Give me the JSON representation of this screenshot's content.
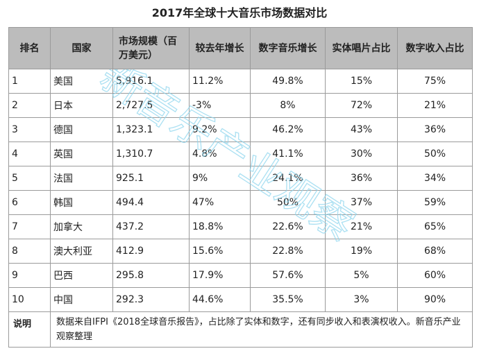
{
  "title": "2017年全球十大音乐市场数据对比",
  "headers": {
    "rank": "排名",
    "country": "国家",
    "market": "市场规模（百万美元）",
    "yoy": "较去年增长",
    "digital_growth": "数字音乐增长",
    "physical_share": "实体唱片占比",
    "digital_share": "数字收入占比"
  },
  "rows": [
    {
      "rank": "1",
      "country": "美国",
      "market": "5,916.1",
      "yoy": "11.2%",
      "digital_growth": "49.8%",
      "physical_share": "15%",
      "digital_share": "75%"
    },
    {
      "rank": "2",
      "country": "日本",
      "market": "2,727.5",
      "yoy": "-3%",
      "digital_growth": "8%",
      "physical_share": "72%",
      "digital_share": "21%"
    },
    {
      "rank": "3",
      "country": "德国",
      "market": "1,323.1",
      "yoy": "9.2%",
      "digital_growth": "46.2%",
      "physical_share": "43%",
      "digital_share": "36%"
    },
    {
      "rank": "4",
      "country": "英国",
      "market": "1,310.7",
      "yoy": "4.8%",
      "digital_growth": "41.1%",
      "physical_share": "30%",
      "digital_share": "50%"
    },
    {
      "rank": "5",
      "country": "法国",
      "market": "925.1",
      "yoy": "9%",
      "digital_growth": "24.1%",
      "physical_share": "36%",
      "digital_share": "34%"
    },
    {
      "rank": "6",
      "country": "韩国",
      "market": "494.4",
      "yoy": "47%",
      "digital_growth": "50%",
      "physical_share": "37%",
      "digital_share": "59%"
    },
    {
      "rank": "7",
      "country": "加拿大",
      "market": "437.2",
      "yoy": "18.8%",
      "digital_growth": "22.6%",
      "physical_share": "21%",
      "digital_share": "65%"
    },
    {
      "rank": "8",
      "country": "澳大利亚",
      "market": "412.9",
      "yoy": "15.6%",
      "digital_growth": "22.8%",
      "physical_share": "19%",
      "digital_share": "68%"
    },
    {
      "rank": "9",
      "country": "巴西",
      "market": "295.8",
      "yoy": "17.9%",
      "digital_growth": "57.6%",
      "physical_share": "5%",
      "digital_share": "60%"
    },
    {
      "rank": "10",
      "country": "中国",
      "market": "292.3",
      "yoy": "44.6%",
      "digital_growth": "35.5%",
      "physical_share": "3%",
      "digital_share": "90%"
    }
  ],
  "note": {
    "label": "说明",
    "text": "数据来自IFPI《2018全球音乐报告》，占比除了实体和数字，还有同步收入和表演权收入。新音乐产业观察整理"
  },
  "watermark": "新音乐产业观察",
  "colors": {
    "header_bg": "#bcbcbc",
    "border": "#9a9a9a",
    "watermark": "#8fd6ee"
  }
}
